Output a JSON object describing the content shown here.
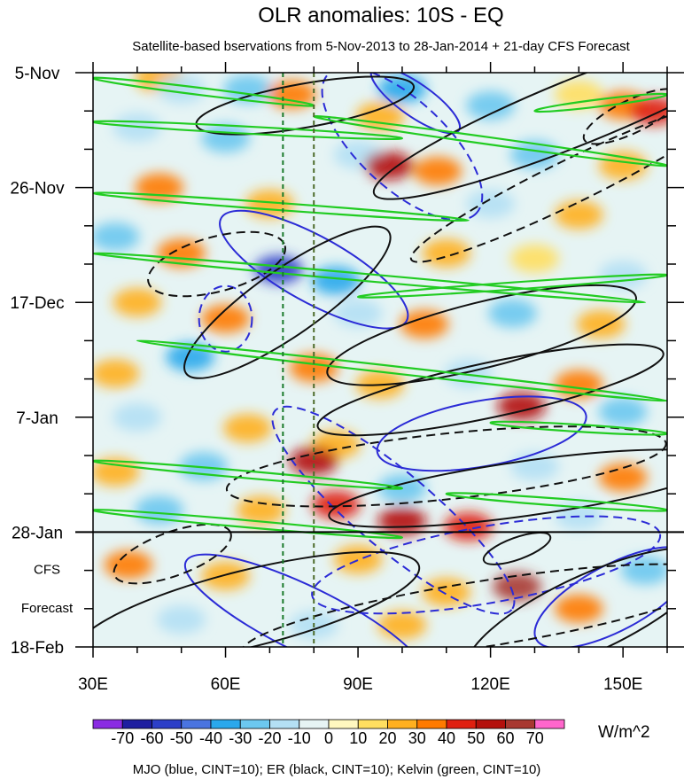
{
  "chart_data": {
    "type": "heatmap",
    "title": "OLR anomalies: 10S - EQ",
    "subtitle": "Satellite-based bservations from 5-Nov-2013 to 28-Jan-2014 + 21-day CFS Forecast",
    "x_axis": {
      "range": [
        30,
        160
      ],
      "unit": "deg E",
      "ticks": [
        {
          "value": 30,
          "label": "30E"
        },
        {
          "value": 60,
          "label": "60E"
        },
        {
          "value": 90,
          "label": "90E"
        },
        {
          "value": 120,
          "label": "120E"
        },
        {
          "value": 150,
          "label": "150E"
        }
      ]
    },
    "y_axis": {
      "range_days": [
        0,
        105
      ],
      "direction": "time increases downward",
      "ticks": [
        {
          "day": 0,
          "label": "5-Nov"
        },
        {
          "day": 21,
          "label": "26-Nov"
        },
        {
          "day": 42,
          "label": "17-Dec"
        },
        {
          "day": 63,
          "label": "7-Jan"
        },
        {
          "day": 84,
          "label": "28-Jan"
        },
        {
          "day": 105,
          "label": "18-Feb"
        }
      ]
    },
    "forecast": {
      "start_day": 84,
      "label_line1": "CFS",
      "label_line2": "Forecast"
    },
    "reference_lines_lon": [
      73,
      80
    ],
    "colorbar": {
      "unit": "W/m^2",
      "levels": [
        -70,
        -60,
        -50,
        -40,
        -30,
        -20,
        -10,
        0,
        10,
        20,
        30,
        40,
        50,
        60,
        70
      ],
      "labels": [
        "-70",
        "-60",
        "-50",
        "-40",
        "-30",
        "-20",
        "-10",
        "0",
        "10",
        "20",
        "30",
        "40",
        "50",
        "60",
        "70"
      ],
      "colors": [
        "#8a2be2",
        "#1e1ea0",
        "#2c3fc8",
        "#4a74e0",
        "#2aa8ec",
        "#6cc8f0",
        "#b4e0f4",
        "#e6f4f4",
        "#fff8bf",
        "#ffdf60",
        "#ffb020",
        "#ff7a00",
        "#e02010",
        "#b4100c",
        "#a83830",
        "#ff66cc"
      ]
    },
    "anomaly_cells": [
      {
        "lon": 45,
        "day": 1,
        "value": 20
      },
      {
        "lon": 50,
        "day": 3,
        "value": -20
      },
      {
        "lon": 65,
        "day": 3,
        "value": -30
      },
      {
        "lon": 75,
        "day": 4,
        "value": 30
      },
      {
        "lon": 100,
        "day": 3,
        "value": -40
      },
      {
        "lon": 95,
        "day": 8,
        "value": 20
      },
      {
        "lon": 120,
        "day": 6,
        "value": -30
      },
      {
        "lon": 140,
        "day": 4,
        "value": 10
      },
      {
        "lon": 150,
        "day": 6,
        "value": 30
      },
      {
        "lon": 157,
        "day": 7,
        "value": 40
      },
      {
        "lon": 40,
        "day": 10,
        "value": -20
      },
      {
        "lon": 60,
        "day": 12,
        "value": -30
      },
      {
        "lon": 90,
        "day": 15,
        "value": -20
      },
      {
        "lon": 97,
        "day": 17,
        "value": 50
      },
      {
        "lon": 108,
        "day": 18,
        "value": 30
      },
      {
        "lon": 130,
        "day": 15,
        "value": -30
      },
      {
        "lon": 150,
        "day": 17,
        "value": 20
      },
      {
        "lon": 45,
        "day": 21,
        "value": 30
      },
      {
        "lon": 70,
        "day": 24,
        "value": 20
      },
      {
        "lon": 120,
        "day": 24,
        "value": -20
      },
      {
        "lon": 140,
        "day": 26,
        "value": 20
      },
      {
        "lon": 35,
        "day": 30,
        "value": -30
      },
      {
        "lon": 50,
        "day": 33,
        "value": 30
      },
      {
        "lon": 72,
        "day": 36,
        "value": -60
      },
      {
        "lon": 85,
        "day": 38,
        "value": -40
      },
      {
        "lon": 110,
        "day": 33,
        "value": 20
      },
      {
        "lon": 130,
        "day": 34,
        "value": 10
      },
      {
        "lon": 150,
        "day": 37,
        "value": -20
      },
      {
        "lon": 40,
        "day": 42,
        "value": 20
      },
      {
        "lon": 60,
        "day": 45,
        "value": 30
      },
      {
        "lon": 90,
        "day": 44,
        "value": -20
      },
      {
        "lon": 105,
        "day": 46,
        "value": 30
      },
      {
        "lon": 125,
        "day": 44,
        "value": -30
      },
      {
        "lon": 145,
        "day": 46,
        "value": 20
      },
      {
        "lon": 52,
        "day": 52,
        "value": -40
      },
      {
        "lon": 35,
        "day": 55,
        "value": 20
      },
      {
        "lon": 80,
        "day": 54,
        "value": 30
      },
      {
        "lon": 95,
        "day": 57,
        "value": 20
      },
      {
        "lon": 115,
        "day": 55,
        "value": -20
      },
      {
        "lon": 140,
        "day": 57,
        "value": 30
      },
      {
        "lon": 40,
        "day": 63,
        "value": -20
      },
      {
        "lon": 65,
        "day": 65,
        "value": 20
      },
      {
        "lon": 85,
        "day": 68,
        "value": 20
      },
      {
        "lon": 127,
        "day": 61,
        "value": 50
      },
      {
        "lon": 150,
        "day": 62,
        "value": -30
      },
      {
        "lon": 35,
        "day": 73,
        "value": 20
      },
      {
        "lon": 55,
        "day": 72,
        "value": -30
      },
      {
        "lon": 80,
        "day": 71,
        "value": 50
      },
      {
        "lon": 100,
        "day": 76,
        "value": -30
      },
      {
        "lon": 130,
        "day": 72,
        "value": -20
      },
      {
        "lon": 150,
        "day": 74,
        "value": 30
      },
      {
        "lon": 45,
        "day": 80,
        "value": -30
      },
      {
        "lon": 68,
        "day": 80,
        "value": 20
      },
      {
        "lon": 85,
        "day": 79,
        "value": 40
      },
      {
        "lon": 100,
        "day": 82,
        "value": 50
      },
      {
        "lon": 115,
        "day": 83,
        "value": 40
      },
      {
        "lon": 140,
        "day": 81,
        "value": -20
      },
      {
        "lon": 38,
        "day": 90,
        "value": 30
      },
      {
        "lon": 60,
        "day": 92,
        "value": 20
      },
      {
        "lon": 90,
        "day": 89,
        "value": 20
      },
      {
        "lon": 110,
        "day": 95,
        "value": 20
      },
      {
        "lon": 126,
        "day": 94,
        "value": 60
      },
      {
        "lon": 140,
        "day": 98,
        "value": 30
      },
      {
        "lon": 155,
        "day": 91,
        "value": -30
      },
      {
        "lon": 50,
        "day": 100,
        "value": -20
      },
      {
        "lon": 80,
        "day": 101,
        "value": -20
      },
      {
        "lon": 100,
        "day": 101,
        "value": 20
      }
    ],
    "contours": {
      "MJO": [
        {
          "cx": 80,
          "cy": 36,
          "rx": 24,
          "ry": 6,
          "angle": 29,
          "dashed": false
        },
        {
          "cx": 100,
          "cy": 13,
          "rx": 23,
          "ry": 8,
          "angle": 43,
          "dashed": true
        },
        {
          "cx": 103,
          "cy": 5,
          "rx": 12,
          "ry": 3,
          "angle": 35,
          "dashed": false
        },
        {
          "cx": 60,
          "cy": 45,
          "rx": 6,
          "ry": 6,
          "angle": 0,
          "dashed": true
        },
        {
          "cx": 118,
          "cy": 66,
          "rx": 24,
          "ry": 6,
          "angle": -10,
          "dashed": false
        },
        {
          "cx": 98,
          "cy": 80,
          "rx": 35,
          "ry": 7,
          "angle": 40,
          "dashed": true
        },
        {
          "cx": 78,
          "cy": 100,
          "rx": 30,
          "ry": 6,
          "angle": 26,
          "dashed": false
        },
        {
          "cx": 148,
          "cy": 96,
          "rx": 20,
          "ry": 6,
          "angle": -28,
          "dashed": false
        },
        {
          "cx": 119,
          "cy": 90,
          "rx": 40,
          "ry": 7,
          "angle": -10,
          "dashed": true
        }
      ],
      "ER": [
        {
          "cx": 140,
          "cy": 7,
          "rx": 50,
          "ry": 6,
          "angle": -22,
          "dashed": false
        },
        {
          "cx": 152,
          "cy": 8,
          "rx": 12,
          "ry": 3,
          "angle": -26,
          "dashed": true
        },
        {
          "cx": 138,
          "cy": 20,
          "rx": 40,
          "ry": 4,
          "angle": -26,
          "dashed": true
        },
        {
          "cx": 118,
          "cy": 48,
          "rx": 36,
          "ry": 6,
          "angle": -14,
          "dashed": false
        },
        {
          "cx": 74,
          "cy": 42,
          "rx": 28,
          "ry": 6,
          "angle": -35,
          "dashed": false
        },
        {
          "cx": 58,
          "cy": 35,
          "rx": 16,
          "ry": 5,
          "angle": -15,
          "dashed": true
        },
        {
          "cx": 78,
          "cy": 6,
          "rx": 25,
          "ry": 4,
          "angle": -10,
          "dashed": false
        },
        {
          "cx": 120,
          "cy": 58,
          "rx": 40,
          "ry": 5,
          "angle": -12,
          "dashed": false
        },
        {
          "cx": 110,
          "cy": 72,
          "rx": 50,
          "ry": 6,
          "angle": -6,
          "dashed": true
        },
        {
          "cx": 128,
          "cy": 76,
          "rx": 45,
          "ry": 5,
          "angle": -8,
          "dashed": false
        },
        {
          "cx": 65,
          "cy": 98,
          "rx": 40,
          "ry": 7,
          "angle": -14,
          "dashed": false
        },
        {
          "cx": 48,
          "cy": 88,
          "rx": 14,
          "ry": 4,
          "angle": -20,
          "dashed": true
        },
        {
          "cx": 118,
          "cy": 99,
          "rx": 55,
          "ry": 6,
          "angle": -9,
          "dashed": true
        },
        {
          "cx": 142,
          "cy": 99,
          "rx": 30,
          "ry": 7,
          "angle": -25,
          "dashed": false
        },
        {
          "cx": 126,
          "cy": 87,
          "rx": 8,
          "ry": 2,
          "angle": -20,
          "dashed": false
        }
      ],
      "Kelvin": [
        {
          "x1": 30,
          "d1": 1,
          "x2": 80,
          "d2": 6
        },
        {
          "x1": 30,
          "d1": 9,
          "x2": 100,
          "d2": 12
        },
        {
          "x1": 30,
          "d1": 22,
          "x2": 115,
          "d2": 27
        },
        {
          "x1": 30,
          "d1": 33,
          "x2": 155,
          "d2": 42
        },
        {
          "x1": 40,
          "d1": 49,
          "x2": 160,
          "d2": 60
        },
        {
          "x1": 30,
          "d1": 71,
          "x2": 100,
          "d2": 76
        },
        {
          "x1": 30,
          "d1": 80,
          "x2": 100,
          "d2": 85
        },
        {
          "x1": 80,
          "d1": 8,
          "x2": 160,
          "d2": 17
        },
        {
          "x1": 130,
          "d1": 7,
          "x2": 160,
          "d2": 4
        },
        {
          "x1": 90,
          "d1": 41,
          "x2": 160,
          "d2": 37
        },
        {
          "x1": 120,
          "d1": 64,
          "x2": 160,
          "d2": 66
        },
        {
          "x1": 110,
          "d1": 77,
          "x2": 160,
          "d2": 80
        }
      ]
    },
    "footer": "MJO (blue, CINT=10); ER (black, CINT=10); Kelvin (green, CINT=10)"
  }
}
